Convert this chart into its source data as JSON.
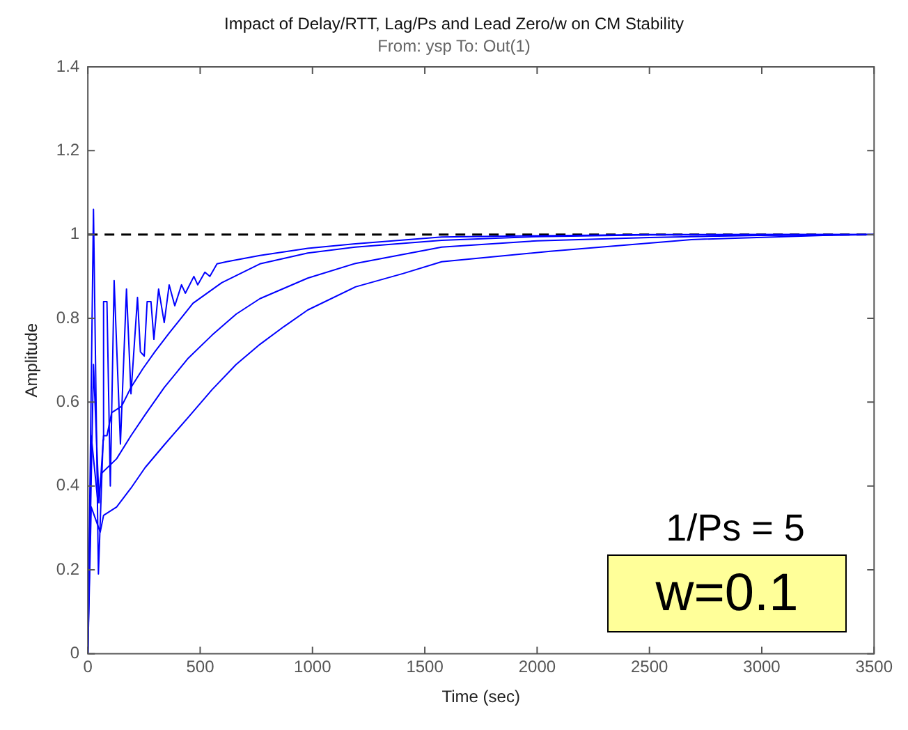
{
  "chart_data": {
    "type": "line",
    "title": "Impact of Delay/RTT, Lag/Ps and Lead Zero/w on CM Stability",
    "subtitle": "From: ysp  To: Out(1)",
    "xlabel": "Time (sec)",
    "ylabel": "Amplitude",
    "xlim": [
      0,
      3500
    ],
    "xticks": [
      0,
      500,
      1000,
      1500,
      2000,
      2500,
      3000,
      3500
    ],
    "ylim": [
      0,
      1.4
    ],
    "yticks": [
      0,
      0.2,
      0.4,
      0.6,
      0.8,
      1,
      1.2,
      1.4
    ],
    "marker": "none",
    "series": [
      {
        "color": "#0000ff",
        "x": [
          0,
          25,
          47,
          68,
          70,
          85,
          100,
          117,
          145,
          172,
          192,
          221,
          234,
          251,
          264,
          281,
          294,
          315,
          340,
          362,
          387,
          417,
          434,
          472,
          489,
          521,
          543,
          575,
          617,
          766,
          979,
          1191,
          1575,
          2000,
          2500,
          3500
        ],
        "values": [
          0,
          1.06,
          0.19,
          0.51,
          0.84,
          0.84,
          0.4,
          0.89,
          0.5,
          0.87,
          0.62,
          0.85,
          0.72,
          0.71,
          0.84,
          0.84,
          0.75,
          0.87,
          0.79,
          0.88,
          0.83,
          0.88,
          0.86,
          0.9,
          0.88,
          0.91,
          0.9,
          0.93,
          0.935,
          0.95,
          0.967,
          0.978,
          0.994,
          0.997,
          1,
          1
        ]
      },
      {
        "color": "#0000ff",
        "x": [
          0,
          25,
          50,
          70,
          85,
          106,
          150,
          192,
          245,
          298,
          362,
          468,
          596,
          766,
          979,
          1191,
          1575,
          2000,
          2500,
          3000,
          3500
        ],
        "values": [
          0,
          0.69,
          0.36,
          0.52,
          0.52,
          0.575,
          0.59,
          0.635,
          0.68,
          0.72,
          0.765,
          0.836,
          0.885,
          0.93,
          0.956,
          0.97,
          0.986,
          0.995,
          0.999,
          1,
          1
        ]
      },
      {
        "color": "#0000ff",
        "x": [
          0,
          15,
          45,
          60,
          128,
          192,
          255,
          340,
          447,
          553,
          660,
          766,
          979,
          1191,
          1575,
          2000,
          2500,
          3000,
          3500
        ],
        "values": [
          0,
          0.52,
          0.36,
          0.43,
          0.465,
          0.52,
          0.57,
          0.635,
          0.705,
          0.76,
          0.81,
          0.847,
          0.896,
          0.931,
          0.97,
          0.985,
          0.993,
          0.998,
          1
        ]
      },
      {
        "color": "#0000ff",
        "x": [
          0,
          15,
          55,
          70,
          128,
          192,
          255,
          340,
          447,
          553,
          660,
          766,
          872,
          979,
          1191,
          1404,
          1575,
          2058,
          2687,
          3273,
          3500
        ],
        "values": [
          0,
          0.35,
          0.29,
          0.33,
          0.35,
          0.395,
          0.444,
          0.498,
          0.564,
          0.63,
          0.69,
          0.738,
          0.78,
          0.82,
          0.875,
          0.907,
          0.935,
          0.96,
          0.988,
          0.998,
          1
        ]
      }
    ],
    "ref_lines": [
      {
        "axis": "y",
        "value": 1,
        "color": "#000000",
        "line_style": "dashed"
      }
    ],
    "annotations": [
      "1/Ps = 5",
      "w=0.1"
    ]
  }
}
